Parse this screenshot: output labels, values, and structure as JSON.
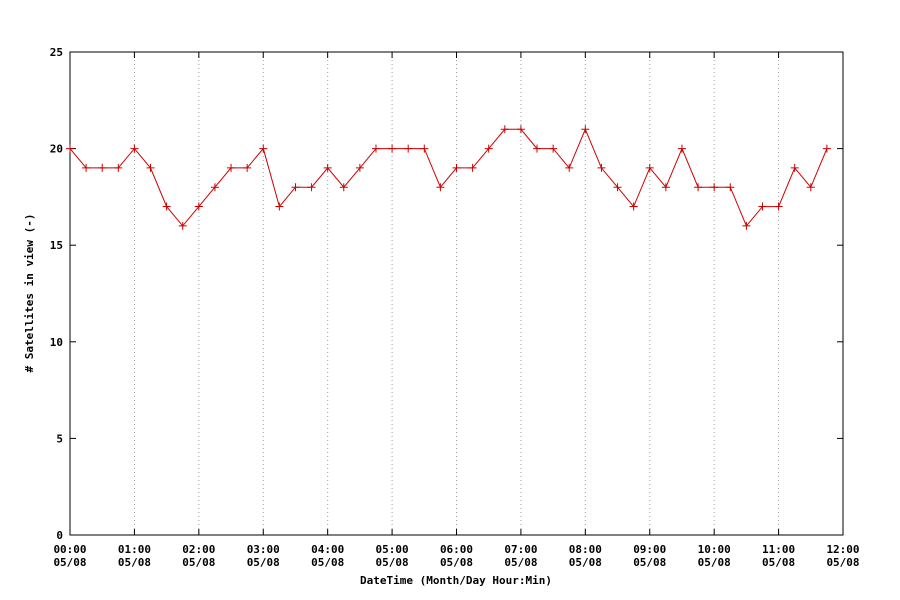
{
  "chart_data": {
    "type": "line",
    "xlabel": "DateTime (Month/Day Hour:Min)",
    "ylabel": "# Satellites in view (-)",
    "xlim": [
      "05/08 00:00",
      "05/08 12:00"
    ],
    "ylim": [
      0,
      25
    ],
    "y_ticks": [
      "0",
      "5",
      "10",
      "15",
      "20",
      "25"
    ],
    "x_ticks": [
      {
        "time": "00:00",
        "date": "05/08"
      },
      {
        "time": "01:00",
        "date": "05/08"
      },
      {
        "time": "02:00",
        "date": "05/08"
      },
      {
        "time": "03:00",
        "date": "05/08"
      },
      {
        "time": "04:00",
        "date": "05/08"
      },
      {
        "time": "05:00",
        "date": "05/08"
      },
      {
        "time": "06:00",
        "date": "05/08"
      },
      {
        "time": "07:00",
        "date": "05/08"
      },
      {
        "time": "08:00",
        "date": "05/08"
      },
      {
        "time": "09:00",
        "date": "05/08"
      },
      {
        "time": "10:00",
        "date": "05/08"
      },
      {
        "time": "11:00",
        "date": "05/08"
      },
      {
        "time": "12:00",
        "date": "05/08"
      }
    ],
    "grid": "vertical dotted at major x ticks",
    "series_color": "#cc0000",
    "x": [
      "00:00",
      "00:15",
      "00:30",
      "00:45",
      "01:00",
      "01:15",
      "01:30",
      "01:45",
      "02:00",
      "02:15",
      "02:30",
      "02:45",
      "03:00",
      "03:15",
      "03:30",
      "03:45",
      "04:00",
      "04:15",
      "04:30",
      "04:45",
      "05:00",
      "05:15",
      "05:30",
      "05:45",
      "06:00",
      "06:15",
      "06:30",
      "06:45",
      "07:00",
      "07:15",
      "07:30",
      "07:45",
      "08:00",
      "08:15",
      "08:30",
      "08:45",
      "09:00",
      "09:15",
      "09:30",
      "09:45",
      "10:00",
      "10:15",
      "10:30",
      "10:45",
      "11:00",
      "11:15",
      "11:30",
      "11:45"
    ],
    "values": [
      20,
      19,
      19,
      19,
      20,
      19,
      17,
      16,
      17,
      18,
      19,
      19,
      20,
      17,
      18,
      18,
      19,
      18,
      19,
      20,
      20,
      20,
      20,
      18,
      19,
      19,
      20,
      21,
      21,
      20,
      20,
      19,
      21,
      19,
      18,
      17,
      19,
      18,
      20,
      18,
      18,
      18,
      16,
      17,
      17,
      19,
      18,
      20
    ]
  }
}
